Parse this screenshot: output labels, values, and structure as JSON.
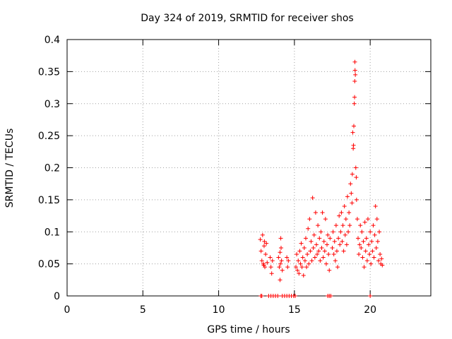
{
  "chart_data": {
    "type": "scatter",
    "title": "Day 324 of 2019, SRMTID for receiver shos",
    "xlabel": "GPS time / hours",
    "ylabel": "SRMTID / TECUs",
    "xlim": [
      0,
      24
    ],
    "ylim": [
      0,
      0.4
    ],
    "x_ticks": [
      0,
      5,
      10,
      15,
      20
    ],
    "y_ticks": [
      0,
      0.05,
      0.1,
      0.15,
      0.2,
      0.25,
      0.3,
      0.35,
      0.4
    ],
    "x_tick_labels": [
      "0",
      "5",
      "10",
      "15",
      "20"
    ],
    "y_tick_labels": [
      "0",
      "0.05",
      "0.1",
      "0.15",
      "0.2",
      "0.25",
      "0.3",
      "0.35",
      "0.4"
    ],
    "grid": true,
    "marker": "+",
    "color": "#ff0000",
    "series": [
      {
        "name": "SRMTID",
        "points": [
          [
            12.75,
            0.088
          ],
          [
            12.8,
            0.07
          ],
          [
            12.85,
            0.055
          ],
          [
            12.9,
            0.095
          ],
          [
            12.95,
            0.05
          ],
          [
            13.0,
            0.078
          ],
          [
            13.05,
            0.045
          ],
          [
            13.1,
            0.065
          ],
          [
            13.15,
            0.082
          ],
          [
            13.2,
            0.052
          ],
          [
            12.98,
            0.048
          ],
          [
            13.02,
            0.085
          ],
          [
            13.4,
            0.06
          ],
          [
            13.45,
            0.045
          ],
          [
            13.5,
            0.035
          ],
          [
            13.55,
            0.055
          ],
          [
            13.95,
            0.06
          ],
          [
            14.0,
            0.045
          ],
          [
            14.05,
            0.068
          ],
          [
            14.1,
            0.09
          ],
          [
            14.15,
            0.055
          ],
          [
            14.2,
            0.04
          ],
          [
            14.05,
            0.025
          ],
          [
            14.12,
            0.075
          ],
          [
            14.08,
            0.05
          ],
          [
            14.5,
            0.06
          ],
          [
            14.55,
            0.045
          ],
          [
            14.6,
            0.055
          ],
          [
            15.1,
            0.045
          ],
          [
            15.15,
            0.065
          ],
          [
            15.2,
            0.04
          ],
          [
            15.25,
            0.055
          ],
          [
            15.3,
            0.035
          ],
          [
            15.35,
            0.07
          ],
          [
            15.4,
            0.05
          ],
          [
            15.45,
            0.082
          ],
          [
            15.5,
            0.045
          ],
          [
            15.55,
            0.06
          ],
          [
            15.6,
            0.032
          ],
          [
            15.65,
            0.075
          ],
          [
            15.7,
            0.055
          ],
          [
            15.75,
            0.09
          ],
          [
            15.8,
            0.045
          ],
          [
            15.85,
            0.065
          ],
          [
            15.9,
            0.105
          ],
          [
            15.95,
            0.05
          ],
          [
            16.0,
            0.12
          ],
          [
            16.05,
            0.07
          ],
          [
            16.1,
            0.085
          ],
          [
            16.15,
            0.055
          ],
          [
            16.2,
            0.153
          ],
          [
            16.25,
            0.075
          ],
          [
            16.3,
            0.095
          ],
          [
            16.35,
            0.06
          ],
          [
            16.4,
            0.13
          ],
          [
            16.45,
            0.08
          ],
          [
            16.5,
            0.065
          ],
          [
            16.55,
            0.11
          ],
          [
            16.6,
            0.07
          ],
          [
            16.65,
            0.09
          ],
          [
            16.7,
            0.055
          ],
          [
            16.75,
            0.1
          ],
          [
            16.8,
            0.075
          ],
          [
            16.85,
            0.13
          ],
          [
            16.9,
            0.06
          ],
          [
            16.95,
            0.085
          ],
          [
            17.0,
            0.07
          ],
          [
            17.05,
            0.12
          ],
          [
            17.1,
            0.05
          ],
          [
            17.15,
            0.08
          ],
          [
            17.2,
            0.095
          ],
          [
            17.25,
            0.065
          ],
          [
            17.3,
            0.04
          ],
          [
            17.35,
            0.09
          ],
          [
            17.5,
            0.075
          ],
          [
            17.55,
            0.1
          ],
          [
            17.6,
            0.065
          ],
          [
            17.65,
            0.085
          ],
          [
            17.7,
            0.055
          ],
          [
            17.75,
            0.11
          ],
          [
            17.8,
            0.07
          ],
          [
            17.85,
            0.045
          ],
          [
            17.9,
            0.09
          ],
          [
            17.95,
            0.125
          ],
          [
            18.0,
            0.08
          ],
          [
            18.05,
            0.1
          ],
          [
            18.1,
            0.13
          ],
          [
            18.15,
            0.085
          ],
          [
            18.2,
            0.11
          ],
          [
            18.25,
            0.07
          ],
          [
            18.3,
            0.14
          ],
          [
            18.35,
            0.095
          ],
          [
            18.4,
            0.12
          ],
          [
            18.45,
            0.08
          ],
          [
            18.5,
            0.155
          ],
          [
            18.55,
            0.1
          ],
          [
            18.6,
            0.13
          ],
          [
            18.65,
            0.11
          ],
          [
            18.7,
            0.175
          ],
          [
            18.75,
            0.16
          ],
          [
            18.8,
            0.145
          ],
          [
            18.82,
            0.19
          ],
          [
            18.85,
            0.255
          ],
          [
            18.88,
            0.23
          ],
          [
            18.9,
            0.235
          ],
          [
            18.92,
            0.265
          ],
          [
            18.95,
            0.3
          ],
          [
            18.97,
            0.31
          ],
          [
            18.98,
            0.335
          ],
          [
            18.99,
            0.365
          ],
          [
            19.0,
            0.352
          ],
          [
            19.02,
            0.345
          ],
          [
            19.05,
            0.2
          ],
          [
            19.08,
            0.185
          ],
          [
            19.1,
            0.15
          ],
          [
            19.15,
            0.12
          ],
          [
            19.2,
            0.09
          ],
          [
            19.25,
            0.065
          ],
          [
            19.3,
            0.08
          ],
          [
            19.35,
            0.11
          ],
          [
            19.4,
            0.075
          ],
          [
            19.45,
            0.1
          ],
          [
            19.5,
            0.06
          ],
          [
            19.55,
            0.085
          ],
          [
            19.6,
            0.045
          ],
          [
            19.65,
            0.115
          ],
          [
            19.7,
            0.07
          ],
          [
            19.75,
            0.09
          ],
          [
            19.8,
            0.055
          ],
          [
            19.85,
            0.12
          ],
          [
            19.9,
            0.08
          ],
          [
            19.95,
            0.065
          ],
          [
            20.0,
            0.1
          ],
          [
            20.05,
            0.05
          ],
          [
            20.1,
            0.085
          ],
          [
            20.15,
            0.07
          ],
          [
            20.2,
            0.11
          ],
          [
            20.25,
            0.06
          ],
          [
            20.3,
            0.095
          ],
          [
            20.35,
            0.14
          ],
          [
            20.4,
            0.075
          ],
          [
            20.45,
            0.12
          ],
          [
            20.5,
            0.085
          ],
          [
            20.55,
            0.055
          ],
          [
            20.6,
            0.1
          ],
          [
            20.65,
            0.065
          ],
          [
            20.7,
            0.05
          ],
          [
            20.75,
            0.058
          ],
          [
            20.8,
            0.048
          ],
          [
            12.78,
            0.0
          ],
          [
            12.85,
            0.0
          ],
          [
            13.3,
            0.0
          ],
          [
            13.45,
            0.0
          ],
          [
            13.6,
            0.0
          ],
          [
            13.75,
            0.0
          ],
          [
            13.9,
            0.0
          ],
          [
            14.2,
            0.0
          ],
          [
            14.35,
            0.0
          ],
          [
            14.5,
            0.0
          ],
          [
            14.65,
            0.0
          ],
          [
            14.8,
            0.0
          ],
          [
            14.95,
            0.0
          ],
          [
            15.05,
            0.0
          ],
          [
            17.2,
            0.0
          ],
          [
            17.3,
            0.0
          ],
          [
            17.4,
            0.0
          ],
          [
            20.0,
            0.0
          ]
        ]
      }
    ]
  }
}
